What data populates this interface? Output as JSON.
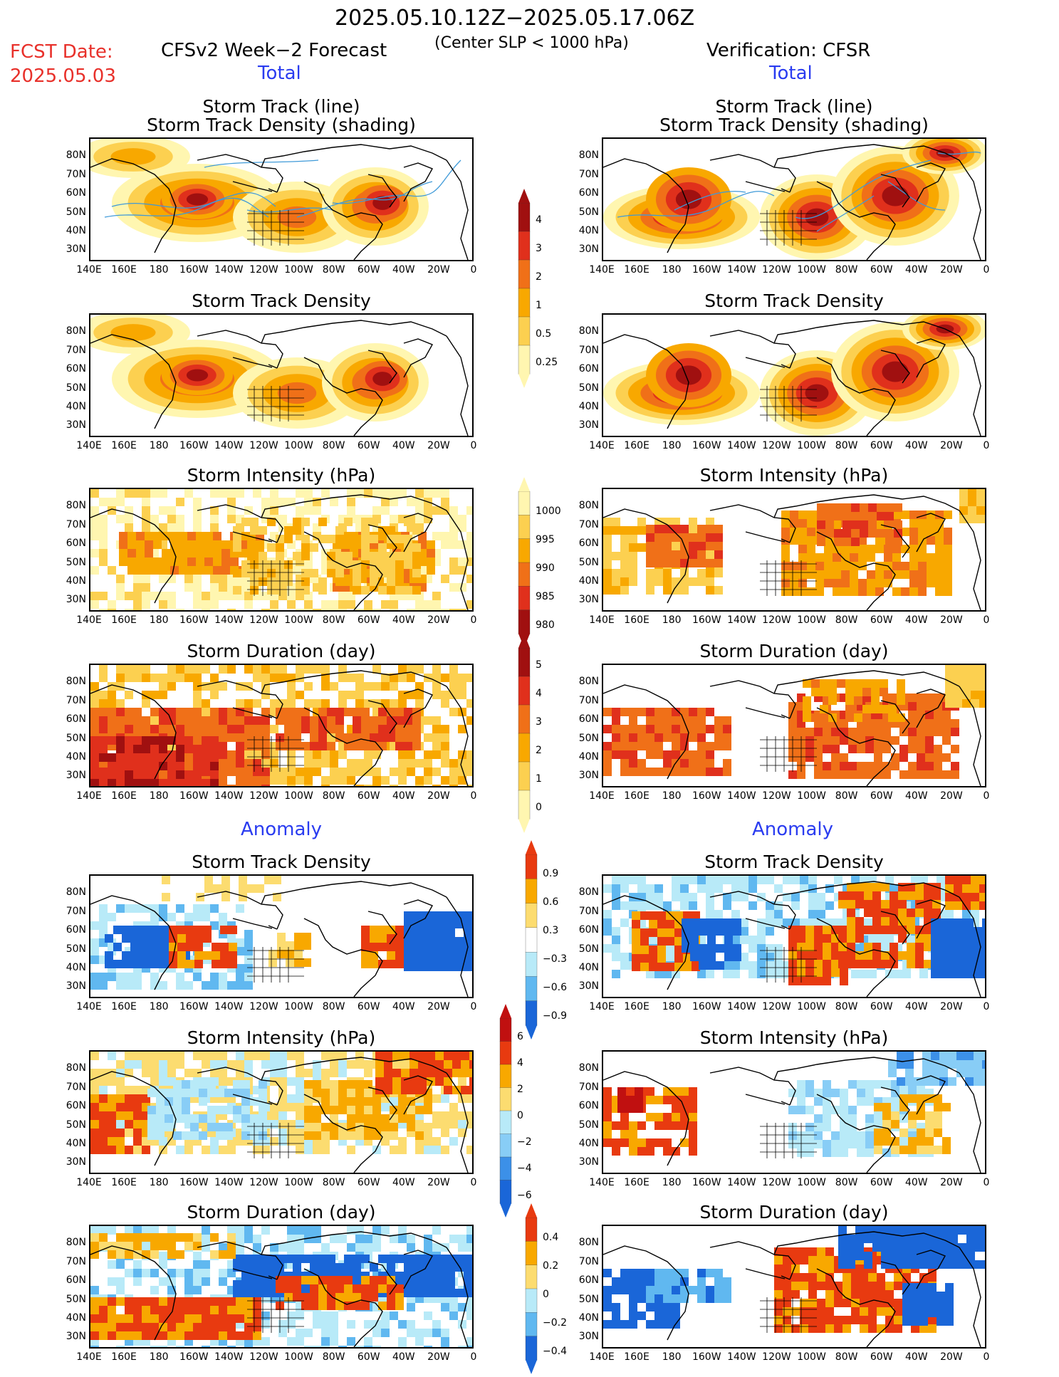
{
  "header": {
    "date_range": "2025.05.10.12Z−2025.05.17.06Z",
    "subtitle": "(Center SLP < 1000 hPa)",
    "fcst_label": "FCST Date:",
    "fcst_date": "2025.05.03",
    "left_title": "CFSv2 Week−2 Forecast",
    "right_title": "Verification: CFSR",
    "total_left": "Total",
    "total_right": "Total",
    "anomaly_left": "Anomaly",
    "anomaly_right": "Anomaly"
  },
  "panel_titles": {
    "track_line": "Storm Track (line)",
    "track_shading": "Storm Track Density (shading)",
    "density": "Storm Track Density",
    "intensity": "Storm Intensity (hPa)",
    "duration": "Storm Duration (day)"
  },
  "axes": {
    "lat_labels": [
      "80N",
      "70N",
      "60N",
      "50N",
      "40N",
      "30N"
    ],
    "lon_labels": [
      "140E",
      "160E",
      "180",
      "160W",
      "140W",
      "120W",
      "100W",
      "80W",
      "60W",
      "40W",
      "20W",
      "0"
    ]
  },
  "colorbars": {
    "density_total": {
      "labels": [
        "4",
        "3",
        "2",
        "1",
        "0.5",
        "0.25"
      ],
      "colors": [
        "#a01010",
        "#e0301c",
        "#f07018",
        "#f8a800",
        "#fcd050",
        "#fff6b0"
      ]
    },
    "intensity_total": {
      "labels": [
        "1000",
        "995",
        "990",
        "985",
        "980"
      ],
      "colors": [
        "#fff6b0",
        "#fcd050",
        "#f8a800",
        "#f07018",
        "#e0301c",
        "#a01010"
      ]
    },
    "duration_total": {
      "labels": [
        "5",
        "4",
        "3",
        "2",
        "1",
        "0"
      ],
      "colors": [
        "#a01010",
        "#e0301c",
        "#f07018",
        "#f8a800",
        "#fcd050",
        "#fff6b0"
      ]
    },
    "density_anom": {
      "labels": [
        "0.9",
        "0.6",
        "0.3",
        "−0.3",
        "−0.6",
        "−0.9"
      ],
      "colors": [
        "#e83a10",
        "#f8a800",
        "#fcdc70",
        "#ffffff",
        "#b8eaf8",
        "#60b8f0",
        "#1a66d8"
      ]
    },
    "intensity_anom": {
      "labels": [
        "6",
        "4",
        "2",
        "0",
        "−2",
        "−4",
        "−6"
      ],
      "colors": [
        "#c01010",
        "#e83a10",
        "#f8a800",
        "#fcdc70",
        "#b8eaf8",
        "#88cdf6",
        "#3c90e8",
        "#1a66d8"
      ]
    },
    "duration_anom": {
      "labels": [
        "0.4",
        "0.2",
        "0",
        "−0.2",
        "−0.4"
      ],
      "colors": [
        "#e83a10",
        "#f8a800",
        "#fcdc70",
        "#b8eaf8",
        "#60b8f0",
        "#1a66d8"
      ]
    }
  }
}
